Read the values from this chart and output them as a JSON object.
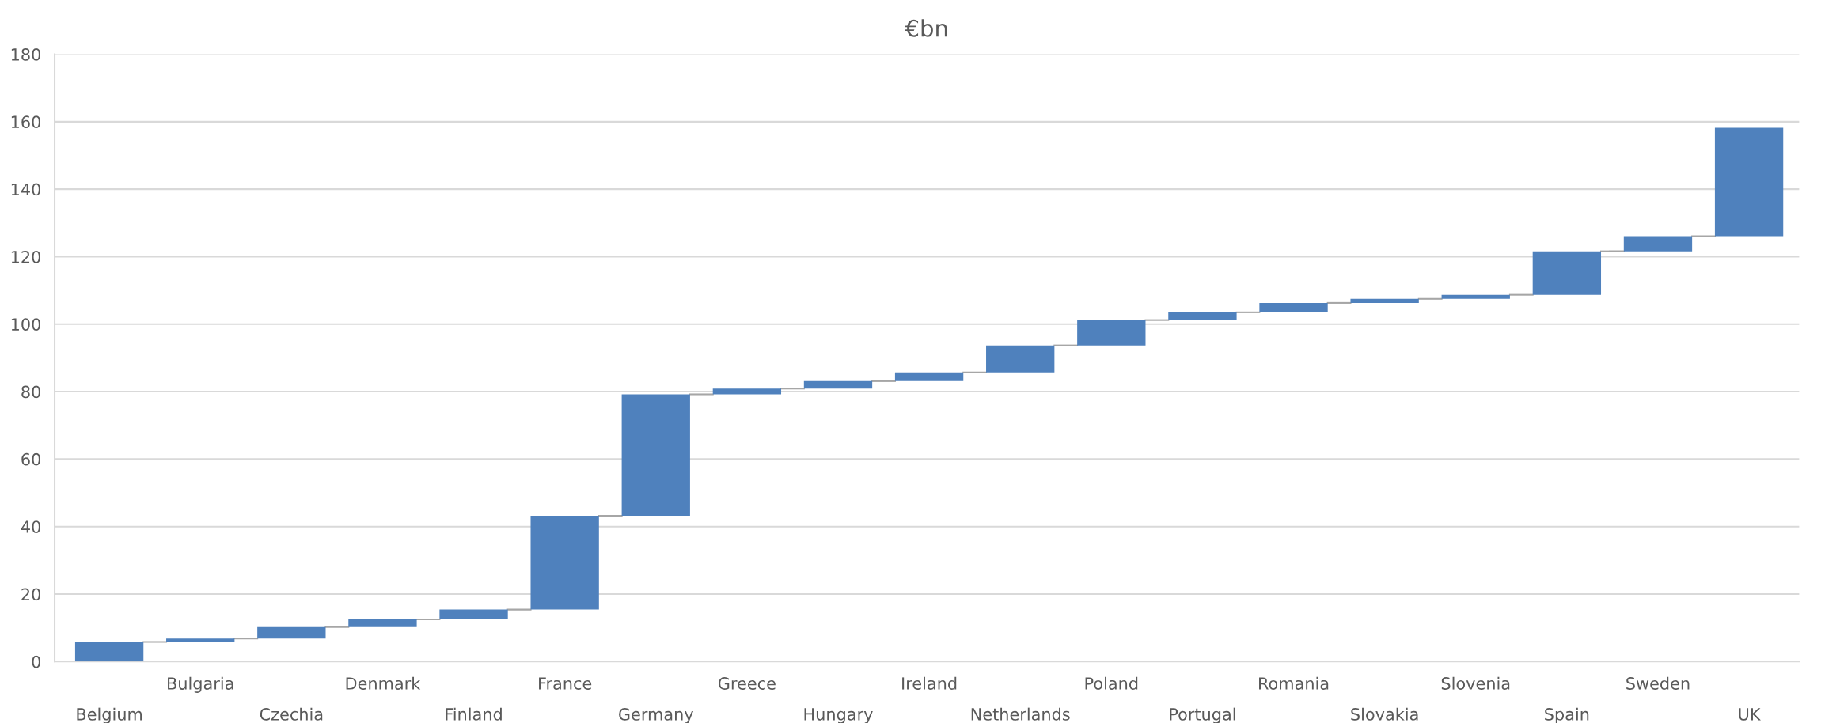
{
  "chart_data": {
    "type": "bar",
    "title": "€bn",
    "categories": [
      "Belgium",
      "Bulgaria",
      "Czechia",
      "Denmark",
      "Finland",
      "France",
      "Germany",
      "Greece",
      "Hungary",
      "Ireland",
      "Netherlands",
      "Poland",
      "Portugal",
      "Romania",
      "Slovakia",
      "Slovenia",
      "Spain",
      "Sweden",
      "UK"
    ],
    "values": [
      5.8,
      1.0,
      3.4,
      2.3,
      2.9,
      27.8,
      36.0,
      1.7,
      2.2,
      2.6,
      8.0,
      7.5,
      2.3,
      2.8,
      1.2,
      1.2,
      12.9,
      4.5,
      32.1
    ],
    "base": [
      0,
      5.8,
      6.8,
      10.2,
      12.5,
      15.4,
      43.2,
      79.2,
      80.9,
      83.1,
      85.7,
      93.7,
      101.2,
      103.5,
      106.3,
      107.5,
      108.7,
      121.6,
      126.1
    ],
    "color": "#4f81bd",
    "ylim": [
      0,
      180
    ],
    "yticks": [
      0,
      20,
      40,
      60,
      80,
      100,
      120,
      140,
      160,
      180
    ],
    "grid": "y",
    "legend": false
  }
}
